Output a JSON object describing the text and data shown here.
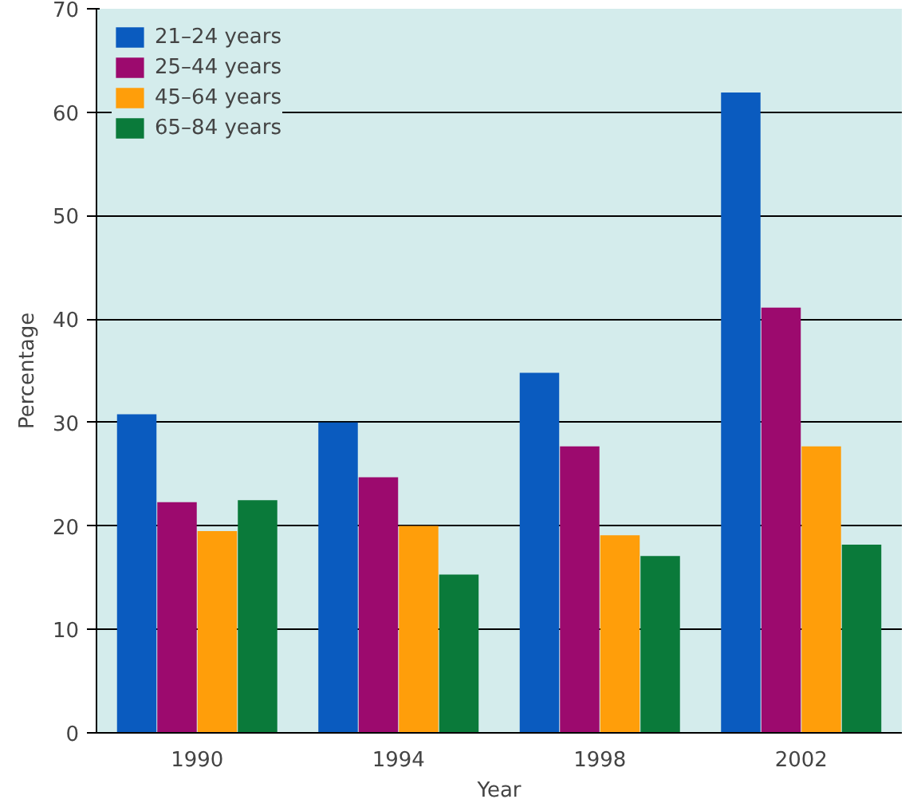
{
  "chart_data": {
    "type": "bar",
    "xlabel": "Year",
    "ylabel": "Percentage",
    "categories": [
      "1990",
      "1994",
      "1998",
      "2002"
    ],
    "series": [
      {
        "name": "21–24 years",
        "color": "#0a5bbf",
        "values": [
          30.8,
          30.0,
          34.8,
          61.9
        ]
      },
      {
        "name": "25–44 years",
        "color": "#9c0a6e",
        "values": [
          22.3,
          24.7,
          27.7,
          41.1
        ]
      },
      {
        "name": "45–64 years",
        "color": "#ff9e0a",
        "values": [
          19.5,
          20.0,
          19.1,
          27.7
        ]
      },
      {
        "name": "65–84 years",
        "color": "#0a7a3a",
        "values": [
          22.5,
          15.3,
          17.1,
          18.2
        ]
      }
    ],
    "ylim": [
      0,
      70
    ],
    "yticks": [
      0,
      10,
      20,
      30,
      40,
      50,
      60,
      70
    ],
    "grid": "y",
    "legend": "top left"
  }
}
